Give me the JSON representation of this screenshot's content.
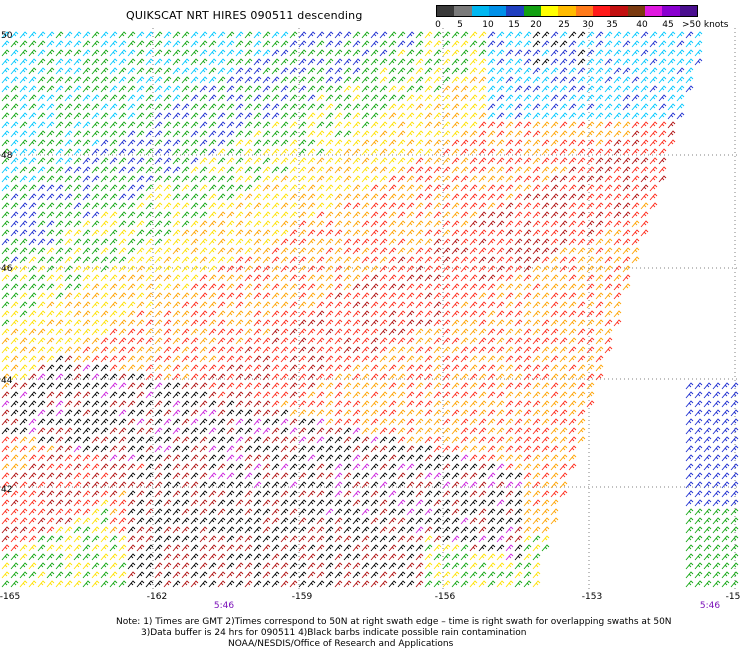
{
  "header": {
    "title": "QUIKSCAT NRT HIRES 090511 descending"
  },
  "legend": {
    "ticks": [
      "0",
      "5",
      "10",
      "15",
      "20",
      "25",
      "30",
      "35",
      "40",
      "45",
      ">50 knots"
    ],
    "colors": [
      "#3a3a3a",
      "#7a7a7a",
      "#00b7f0",
      "#0090e8",
      "#1f3fc0",
      "#12a012",
      "#ffff00",
      "#ffbb00",
      "#ff7a1a",
      "#ff1a1a",
      "#c21010",
      "#7a3a10",
      "#e019e0",
      "#8a00d0",
      "#4a0f8f"
    ]
  },
  "map": {
    "lat_labels": [
      "50",
      "48",
      "46",
      "44",
      "42"
    ],
    "lon_labels": [
      "-165",
      "-162",
      "-159",
      "-156",
      "-153",
      "-15"
    ],
    "time_labels": [
      "5:46",
      "5:46"
    ],
    "colors": {
      "black": "#000000",
      "cyan": "#00c8ff",
      "blue": "#1e2ed0",
      "green": "#11a611",
      "yellow": "#ffe100",
      "orange": "#ffa300",
      "red": "#ff2a1a",
      "darkred": "#b01010",
      "magenta": "#cc22dd",
      "grid": "#808080"
    }
  },
  "footer": {
    "note_line1": "Note: 1) Times are GMT 2)Times correspond to 50N at right swath edge – time is right swath for overlapping swaths at 50N",
    "note_line2": "3)Data buffer is 24 hrs for 090511 4)Black barbs indicate possible rain contamination",
    "note_line3": "NOAA/NESDIS/Office of Research and Applications"
  }
}
